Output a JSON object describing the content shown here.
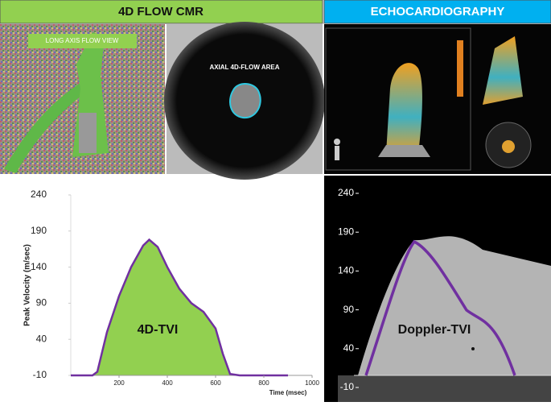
{
  "headers": {
    "left": "4D FLOW CMR",
    "right": "ECHOCARDIOGRAPHY"
  },
  "images": {
    "long_axis_label": "LONG AXIS FLOW VIEW",
    "axial_label": "AXIAL 4D-FLOW AREA"
  },
  "chart_data": [
    {
      "type": "line",
      "xlabel": "Time (msec)",
      "ylabel": "Peak Velocity (m/sec)",
      "annotation": "4D-TVI",
      "x": [
        0,
        90,
        110,
        150,
        200,
        250,
        300,
        325,
        360,
        400,
        450,
        500,
        550,
        600,
        630,
        660,
        700,
        900
      ],
      "values": [
        -10,
        -10,
        -5,
        50,
        100,
        140,
        170,
        178,
        168,
        140,
        110,
        90,
        78,
        55,
        20,
        -8,
        -10,
        -10
      ],
      "color": "#7030a0",
      "fill": "#92d050",
      "xlim": [
        0,
        1000
      ],
      "xticks": [
        200,
        400,
        600,
        800,
        1000
      ],
      "ylim": [
        -10,
        240
      ],
      "yticks": [
        240,
        190,
        140,
        90,
        40,
        -10
      ]
    },
    {
      "type": "doppler",
      "annotation": "Doppler-TVI",
      "ylim": [
        -10,
        240
      ],
      "yticks": [
        240,
        190,
        140,
        90,
        40,
        -10
      ]
    }
  ]
}
